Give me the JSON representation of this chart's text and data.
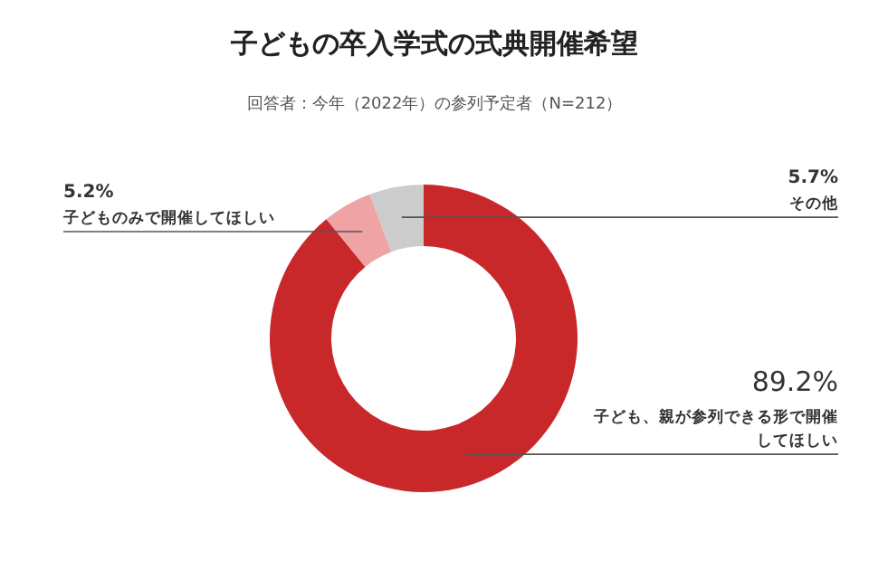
{
  "chart_data": {
    "type": "donut",
    "title": "子どもの卒入学式の式典開催希望",
    "subtitle": "回答者：今年（2022年）の参列予定者（N=212）",
    "categories": [
      "子ども、親が参列できる形で開催してほしい",
      "子どものみで開催してほしい",
      "その他"
    ],
    "values": [
      89.2,
      5.2,
      5.7
    ],
    "value_labels": [
      "89.2%",
      "5.2%",
      "5.7%"
    ],
    "colors": [
      "#c8282a",
      "#f0a3a5",
      "#cccccc"
    ]
  }
}
